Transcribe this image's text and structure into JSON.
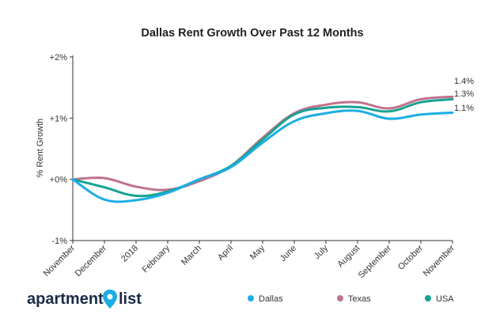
{
  "chart_data": {
    "type": "line",
    "title": "Dallas Rent Growth Over Past 12 Months",
    "ylabel": "% Rent Growth",
    "xlabel": "",
    "ylim": [
      -1,
      2
    ],
    "yticks": [
      {
        "value": 2,
        "label": "+2%"
      },
      {
        "value": 1,
        "label": "+1%"
      },
      {
        "value": 0,
        "label": "+0%"
      },
      {
        "value": -1,
        "label": "-1%"
      }
    ],
    "categories": [
      "November",
      "December",
      "2018",
      "February",
      "March",
      "April",
      "May",
      "June",
      "July",
      "August",
      "September",
      "October",
      "November"
    ],
    "series": [
      {
        "name": "Dallas",
        "color": "#1cade4",
        "values": [
          0.0,
          -0.33,
          -0.34,
          -0.22,
          0.0,
          0.2,
          0.6,
          0.95,
          1.08,
          1.12,
          0.99,
          1.06,
          1.09
        ],
        "end_label": "1.1%"
      },
      {
        "name": "Texas",
        "color": "#c0728c",
        "values": [
          0.0,
          0.02,
          -0.12,
          -0.17,
          -0.03,
          0.22,
          0.68,
          1.08,
          1.22,
          1.26,
          1.16,
          1.31,
          1.35
        ],
        "end_label": "1.4%"
      },
      {
        "name": "USA",
        "color": "#16a394",
        "values": [
          0.0,
          -0.13,
          -0.27,
          -0.2,
          0.0,
          0.22,
          0.65,
          1.06,
          1.17,
          1.18,
          1.11,
          1.26,
          1.31
        ],
        "end_label": "1.3%"
      }
    ],
    "grid": false,
    "legend_position": "bottom"
  },
  "logo": {
    "text_left": "apartment",
    "text_right": "list",
    "icon": "map-pin-icon",
    "pin_color": "#1cade4"
  }
}
